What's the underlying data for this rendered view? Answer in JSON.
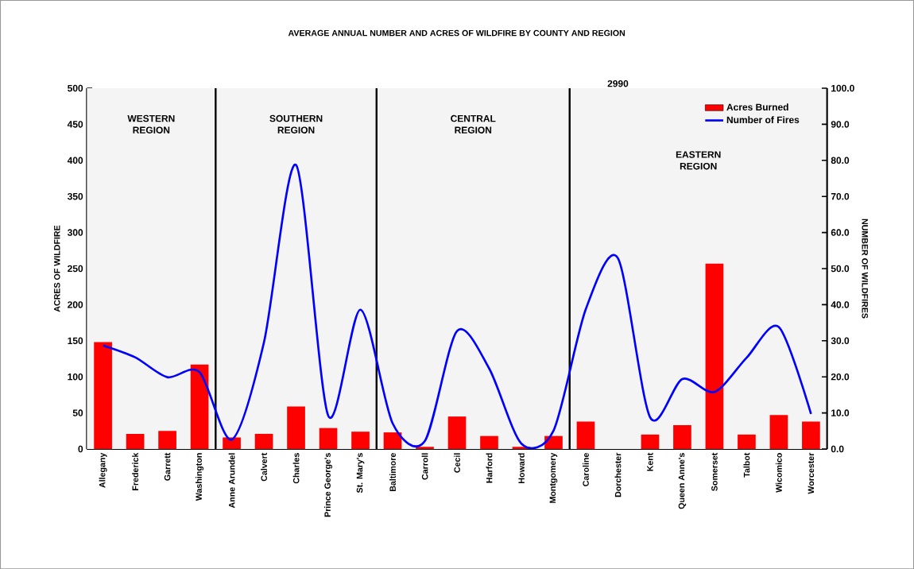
{
  "chart_data": {
    "type": "bar",
    "title": "AVERAGE ANNUAL NUMBER AND ACRES OF WILDFIRE BY COUNTY AND REGION",
    "ylabel": "ACRES OF WILDFIRE",
    "y2label": "NUMBER OF WILDFIRES",
    "categories": [
      "Allegany",
      "Frederick",
      "Garrett",
      "Washington",
      "Anne Arundel",
      "Calvert",
      "Charles",
      "Prince George's",
      "St. Mary's",
      "Baltimore",
      "Carroll",
      "Cecil",
      "Harford",
      "Howard",
      "Montgomery",
      "Caroline",
      "Dorchester",
      "Kent",
      "Queen Anne's",
      "Somerset",
      "Talbot",
      "Wicomico",
      "Worcester"
    ],
    "series": [
      {
        "name": "Acres Burned",
        "color": "#ff0000",
        "values": [
          148,
          21,
          25,
          117,
          16,
          21,
          59,
          29,
          24,
          23,
          3,
          45,
          18,
          3,
          18,
          38,
          null,
          20,
          33,
          257,
          20,
          47,
          38
        ]
      },
      {
        "name": "Number of Fires",
        "type": "line",
        "axis": "y2",
        "color": "#0000ff",
        "values": [
          28.7,
          25.4,
          19.9,
          21.3,
          2.6,
          29.5,
          78.7,
          9.2,
          38.6,
          7.1,
          2.2,
          32.7,
          22.3,
          1.5,
          5.1,
          38.7,
          52.9,
          8.8,
          19.4,
          15.8,
          25.3,
          33.8,
          9.7
        ]
      }
    ],
    "ylim": [
      0,
      500
    ],
    "yticks": [
      0,
      50,
      100,
      150,
      200,
      250,
      300,
      350,
      400,
      450,
      500
    ],
    "y2lim": [
      0,
      100
    ],
    "y2ticks": [
      {
        "value": 0,
        "label": "0.0"
      },
      {
        "value": 10,
        "label": "10.0"
      },
      {
        "value": 20,
        "label": "20.0"
      },
      {
        "value": 30,
        "label": "30.0"
      },
      {
        "value": 40,
        "label": "40.0"
      },
      {
        "value": 50,
        "label": "50.0"
      },
      {
        "value": 60,
        "label": "60.0"
      },
      {
        "value": 70,
        "label": "70.0"
      },
      {
        "value": 80,
        "label": "80.0"
      },
      {
        "value": 90,
        "label": "90.0"
      },
      {
        "value": 100,
        "label": "100.0"
      }
    ],
    "bands": [
      {
        "axis": "x",
        "from": "Allegany",
        "to": "Washington",
        "label": "WESTERN REGION",
        "color": "#f4f4f4"
      },
      {
        "axis": "x",
        "from": "Anne Arundel",
        "to": "St. Mary's",
        "label": "SOUTHERN REGION",
        "color": "#f4f4f4"
      },
      {
        "axis": "x",
        "from": "Baltimore",
        "to": "Montgomery",
        "label": "CENTRAL REGION",
        "color": "#f4f4f4"
      },
      {
        "axis": "x",
        "from": "Caroline",
        "to": "Worcester",
        "label": "EASTERN REGION",
        "color": "#f4f4f4"
      }
    ],
    "annotations": [
      {
        "text": "2990",
        "x": "Dorchester",
        "y": 500
      }
    ],
    "legend": "top right",
    "line_style": "solid"
  }
}
